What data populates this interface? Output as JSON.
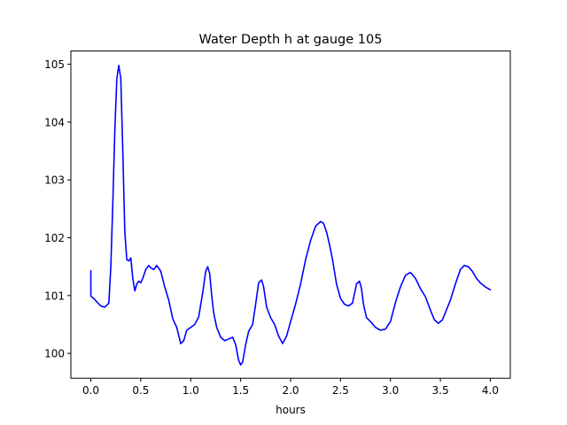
{
  "chart_data": {
    "type": "line",
    "title": "Water Depth h at gauge 105",
    "xlabel": "hours",
    "ylabel": "",
    "xlim": [
      -0.2,
      4.2
    ],
    "ylim": [
      99.57,
      105.23
    ],
    "xticks": [
      0.0,
      0.5,
      1.0,
      1.5,
      2.0,
      2.5,
      3.0,
      3.5,
      4.0
    ],
    "xtick_labels": [
      "0.0",
      "0.5",
      "1.0",
      "1.5",
      "2.0",
      "2.5",
      "3.0",
      "3.5",
      "4.0"
    ],
    "yticks": [
      100,
      101,
      102,
      103,
      104,
      105
    ],
    "ytick_labels": [
      "100",
      "101",
      "102",
      "103",
      "104",
      "105"
    ],
    "grid": false,
    "legend": "none",
    "series": [
      {
        "color": "#0000ff",
        "x": [
          0.0,
          0.0,
          0.03,
          0.06,
          0.1,
          0.14,
          0.18,
          0.2,
          0.22,
          0.24,
          0.26,
          0.28,
          0.3,
          0.32,
          0.34,
          0.36,
          0.38,
          0.4,
          0.42,
          0.44,
          0.46,
          0.48,
          0.5,
          0.52,
          0.55,
          0.58,
          0.6,
          0.63,
          0.66,
          0.7,
          0.74,
          0.78,
          0.82,
          0.86,
          0.9,
          0.93,
          0.96,
          1.0,
          1.04,
          1.08,
          1.12,
          1.15,
          1.17,
          1.19,
          1.21,
          1.23,
          1.26,
          1.3,
          1.34,
          1.38,
          1.42,
          1.45,
          1.48,
          1.5,
          1.52,
          1.55,
          1.58,
          1.62,
          1.65,
          1.68,
          1.71,
          1.73,
          1.76,
          1.8,
          1.84,
          1.88,
          1.92,
          1.96,
          2.0,
          2.05,
          2.1,
          2.15,
          2.2,
          2.25,
          2.3,
          2.33,
          2.36,
          2.39,
          2.42,
          2.46,
          2.5,
          2.54,
          2.58,
          2.62,
          2.66,
          2.69,
          2.71,
          2.73,
          2.76,
          2.8,
          2.85,
          2.9,
          2.95,
          3.0,
          3.05,
          3.1,
          3.15,
          3.2,
          3.25,
          3.3,
          3.35,
          3.4,
          3.44,
          3.48,
          3.52,
          3.56,
          3.6,
          3.65,
          3.7,
          3.74,
          3.78,
          3.82,
          3.86,
          3.9,
          3.95,
          4.0
        ],
        "y": [
          101.43,
          100.99,
          100.95,
          100.89,
          100.82,
          100.8,
          100.87,
          101.5,
          102.6,
          103.85,
          104.75,
          104.98,
          104.75,
          103.5,
          102.1,
          101.62,
          101.6,
          101.65,
          101.3,
          101.08,
          101.2,
          101.25,
          101.22,
          101.3,
          101.45,
          101.52,
          101.48,
          101.45,
          101.52,
          101.42,
          101.15,
          100.92,
          100.6,
          100.45,
          100.17,
          100.22,
          100.4,
          100.45,
          100.5,
          100.63,
          101.05,
          101.42,
          101.5,
          101.38,
          101.0,
          100.7,
          100.45,
          100.28,
          100.22,
          100.25,
          100.28,
          100.15,
          99.88,
          99.8,
          99.85,
          100.15,
          100.38,
          100.5,
          100.85,
          101.22,
          101.27,
          101.15,
          100.8,
          100.62,
          100.5,
          100.3,
          100.17,
          100.3,
          100.55,
          100.85,
          101.2,
          101.62,
          101.95,
          102.2,
          102.28,
          102.25,
          102.1,
          101.88,
          101.62,
          101.2,
          100.95,
          100.85,
          100.82,
          100.87,
          101.2,
          101.25,
          101.12,
          100.85,
          100.62,
          100.55,
          100.45,
          100.4,
          100.42,
          100.55,
          100.88,
          101.15,
          101.35,
          101.4,
          101.3,
          101.12,
          100.98,
          100.75,
          100.58,
          100.52,
          100.58,
          100.75,
          100.92,
          101.2,
          101.45,
          101.52,
          101.5,
          101.42,
          101.3,
          101.22,
          101.15,
          101.1
        ]
      }
    ]
  }
}
